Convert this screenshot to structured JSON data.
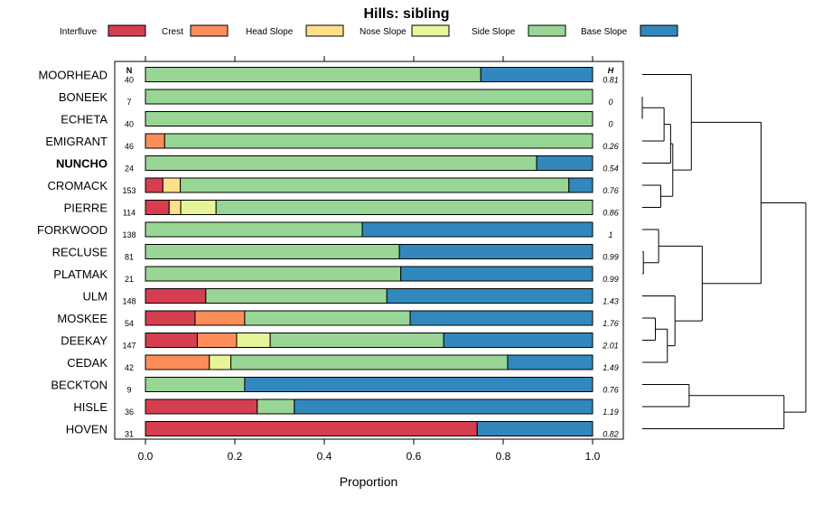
{
  "chart_data": {
    "type": "stacked-bar-horizontal",
    "title": "Hills: sibling",
    "xlabel": "Proportion",
    "xlim": [
      0,
      1
    ],
    "xticks": [
      "0.0",
      "0.2",
      "0.4",
      "0.6",
      "0.8",
      "1.0"
    ],
    "n_header": "N",
    "h_header": "H",
    "legend": [
      {
        "name": "Interfluve",
        "color": "#d53e4f"
      },
      {
        "name": "Crest",
        "color": "#fc8d59"
      },
      {
        "name": "Head Slope",
        "color": "#fee08b"
      },
      {
        "name": "Nose Slope",
        "color": "#e6f598"
      },
      {
        "name": "Side Slope",
        "color": "#99d594"
      },
      {
        "name": "Base Slope",
        "color": "#3288bd"
      }
    ],
    "rows": [
      {
        "label": "MOORHEAD",
        "n": "40",
        "h": "0.81",
        "bold": false,
        "values": [
          0,
          0,
          0,
          0,
          0.75,
          0.25
        ]
      },
      {
        "label": "BONEEK",
        "n": "7",
        "h": "0",
        "bold": false,
        "values": [
          0,
          0,
          0,
          0,
          1.0,
          0
        ]
      },
      {
        "label": "ECHETA",
        "n": "40",
        "h": "0",
        "bold": false,
        "values": [
          0,
          0,
          0,
          0,
          1.0,
          0
        ]
      },
      {
        "label": "EMIGRANT",
        "n": "46",
        "h": "0.26",
        "bold": false,
        "values": [
          0,
          0.043,
          0,
          0,
          0.957,
          0
        ]
      },
      {
        "label": "NUNCHO",
        "n": "24",
        "h": "0.54",
        "bold": true,
        "values": [
          0,
          0,
          0,
          0,
          0.875,
          0.125
        ]
      },
      {
        "label": "CROMACK",
        "n": "153",
        "h": "0.76",
        "bold": false,
        "values": [
          0.039,
          0,
          0.039,
          0,
          0.869,
          0.053
        ]
      },
      {
        "label": "PIERRE",
        "n": "114",
        "h": "0.86",
        "bold": false,
        "values": [
          0.053,
          0,
          0.026,
          0.079,
          0.842,
          0
        ]
      },
      {
        "label": "FORKWOOD",
        "n": "138",
        "h": "1",
        "bold": false,
        "values": [
          0,
          0,
          0,
          0,
          0.485,
          0.515
        ]
      },
      {
        "label": "RECLUSE",
        "n": "81",
        "h": "0.99",
        "bold": false,
        "values": [
          0,
          0,
          0,
          0,
          0.568,
          0.432
        ]
      },
      {
        "label": "PLATMAK",
        "n": "21",
        "h": "0.99",
        "bold": false,
        "values": [
          0,
          0,
          0,
          0,
          0.571,
          0.429
        ]
      },
      {
        "label": "ULM",
        "n": "148",
        "h": "1.43",
        "bold": false,
        "values": [
          0.135,
          0,
          0,
          0,
          0.405,
          0.46
        ]
      },
      {
        "label": "MOSKEE",
        "n": "54",
        "h": "1.76",
        "bold": false,
        "values": [
          0.111,
          0.111,
          0,
          0,
          0.37,
          0.408
        ]
      },
      {
        "label": "DEEKAY",
        "n": "147",
        "h": "2.01",
        "bold": false,
        "values": [
          0.116,
          0.088,
          0,
          0.075,
          0.388,
          0.333
        ]
      },
      {
        "label": "CEDAK",
        "n": "42",
        "h": "1.49",
        "bold": false,
        "values": [
          0,
          0.143,
          0,
          0.048,
          0.619,
          0.19
        ]
      },
      {
        "label": "BECKTON",
        "n": "9",
        "h": "0.76",
        "bold": false,
        "values": [
          0,
          0,
          0,
          0,
          0.222,
          0.778
        ]
      },
      {
        "label": "HISLE",
        "n": "36",
        "h": "1.19",
        "bold": false,
        "values": [
          0.25,
          0,
          0,
          0,
          0.083,
          0.667
        ]
      },
      {
        "label": "HOVEN",
        "n": "31",
        "h": "0.82",
        "bold": false,
        "values": [
          0.742,
          0,
          0,
          0,
          0,
          0.258
        ]
      }
    ],
    "dendrogram": {
      "merges": [
        {
          "a": "leaf:1",
          "b": "leaf:2",
          "height": 0.0
        },
        {
          "a": "leaf:8",
          "b": "leaf:9",
          "height": 0.01
        },
        {
          "a": "leaf:11",
          "b": "leaf:12",
          "height": 0.12
        },
        {
          "a": "leaf:7",
          "b": "node:1",
          "height": 0.15
        },
        {
          "a": "leaf:5",
          "b": "leaf:6",
          "height": 0.17
        },
        {
          "a": "leaf:3",
          "b": "node:0",
          "height": 0.2
        },
        {
          "a": "node:2",
          "b": "leaf:13",
          "height": 0.23
        },
        {
          "a": "leaf:4",
          "b": "node:5",
          "height": 0.26
        },
        {
          "a": "leaf:10",
          "b": "node:6",
          "height": 0.3
        },
        {
          "a": "node:7",
          "b": "node:4",
          "height": 0.28
        },
        {
          "a": "node:3",
          "b": "node:8",
          "height": 0.55
        },
        {
          "a": "leaf:0",
          "b": "node:9",
          "height": 0.45
        },
        {
          "a": "leaf:14",
          "b": "leaf:15",
          "height": 0.43
        },
        {
          "a": "node:11",
          "b": "node:10",
          "height": 1.09
        },
        {
          "a": "node:12",
          "b": "leaf:16",
          "height": 1.3
        },
        {
          "a": "node:13",
          "b": "node:14",
          "height": 1.5
        }
      ],
      "max_height": 1.5
    }
  }
}
